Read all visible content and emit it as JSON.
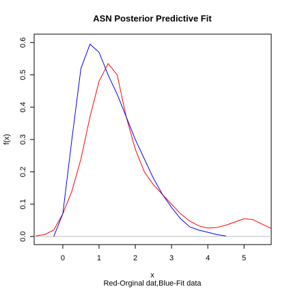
{
  "chart_data": {
    "type": "line",
    "title": "ASN Posterior Predictive Fit",
    "x_label": "x",
    "subtitle": "Red-Orginal dat,Blue-Fit data",
    "y_label": "f(x)",
    "x": [
      -0.75,
      -0.5,
      -0.25,
      0,
      0.25,
      0.5,
      0.75,
      1,
      1.25,
      1.5,
      1.75,
      2,
      2.25,
      2.5,
      2.75,
      3,
      3.25,
      3.5,
      3.75,
      4,
      4.25,
      4.5,
      4.75,
      5,
      5.25,
      5.5,
      5.75
    ],
    "series": [
      {
        "color": "#ff0000",
        "values": [
          0.002,
          0.006,
          0.02,
          0.07,
          0.14,
          0.24,
          0.37,
          0.48,
          0.535,
          0.5,
          0.37,
          0.27,
          0.2,
          0.16,
          0.13,
          0.1,
          0.07,
          0.048,
          0.033,
          0.026,
          0.028,
          0.035,
          0.045,
          0.055,
          0.052,
          0.038,
          0.025
        ]
      },
      {
        "color": "#0000ff",
        "values": [
          null,
          null,
          0.0,
          0.07,
          0.3,
          0.52,
          0.595,
          0.57,
          0.5,
          0.44,
          0.37,
          0.3,
          0.24,
          0.18,
          0.13,
          0.09,
          0.055,
          0.03,
          0.02,
          0.013,
          0.006,
          0.002,
          null,
          null,
          null,
          null,
          null
        ]
      }
    ],
    "xlim": [
      -0.79,
      5.75
    ],
    "ylim": [
      -0.025,
      0.626
    ],
    "xticks": [
      0,
      1,
      2,
      3,
      4,
      5
    ],
    "yticks": [
      {
        "value": 0,
        "label": "0.0"
      },
      0.1,
      0.2,
      0.3,
      0.4,
      0.5,
      0.6
    ],
    "zero_line": true
  }
}
